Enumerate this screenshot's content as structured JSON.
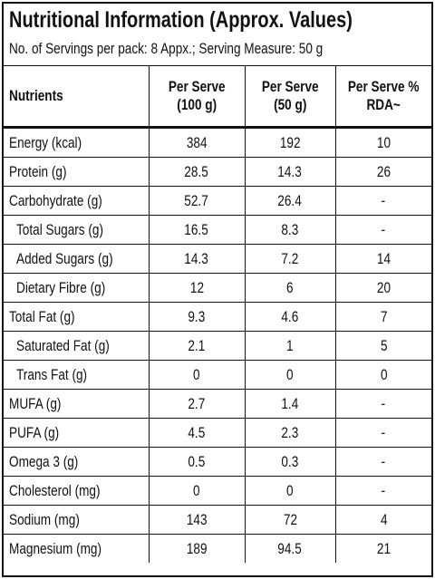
{
  "header": {
    "title": "Nutritional Information (Approx. Values)",
    "subtitle": "No. of Servings per pack: 8 Appx.; Serving Measure: 50 g"
  },
  "table": {
    "columns": [
      "Nutrients",
      "Per Serve\n(100 g)",
      "Per Serve\n(50 g)",
      "Per Serve %\nRDA~"
    ],
    "rows": [
      [
        "Energy (kcal)",
        "384",
        "192",
        "10"
      ],
      [
        "Protein (g)",
        "28.5",
        "14.3",
        "26"
      ],
      [
        "Carbohydrate (g)",
        "52.7",
        "26.4",
        "-"
      ],
      [
        "Total Sugars (g)",
        "16.5",
        "8.3",
        "-"
      ],
      [
        "Added Sugars (g)",
        "14.3",
        "7.2",
        "14"
      ],
      [
        "Dietary Fibre (g)",
        "12",
        "6",
        "20"
      ],
      [
        "Total Fat (g)",
        "9.3",
        "4.6",
        "7"
      ],
      [
        "Saturated Fat (g)",
        "2.1",
        "1",
        "5"
      ],
      [
        "Trans Fat (g)",
        "0",
        "0",
        "0"
      ],
      [
        "MUFA (g)",
        "2.7",
        "1.4",
        "-"
      ],
      [
        "PUFA (g)",
        "4.5",
        "2.3",
        "-"
      ],
      [
        "Omega 3 (g)",
        "0.5",
        "0.3",
        "-"
      ],
      [
        "Cholesterol (mg)",
        "0",
        "0",
        "-"
      ],
      [
        "Sodium (mg)",
        "143",
        "72",
        "4"
      ],
      [
        "Magnesium (mg)",
        "189",
        "94.5",
        "21"
      ]
    ]
  }
}
